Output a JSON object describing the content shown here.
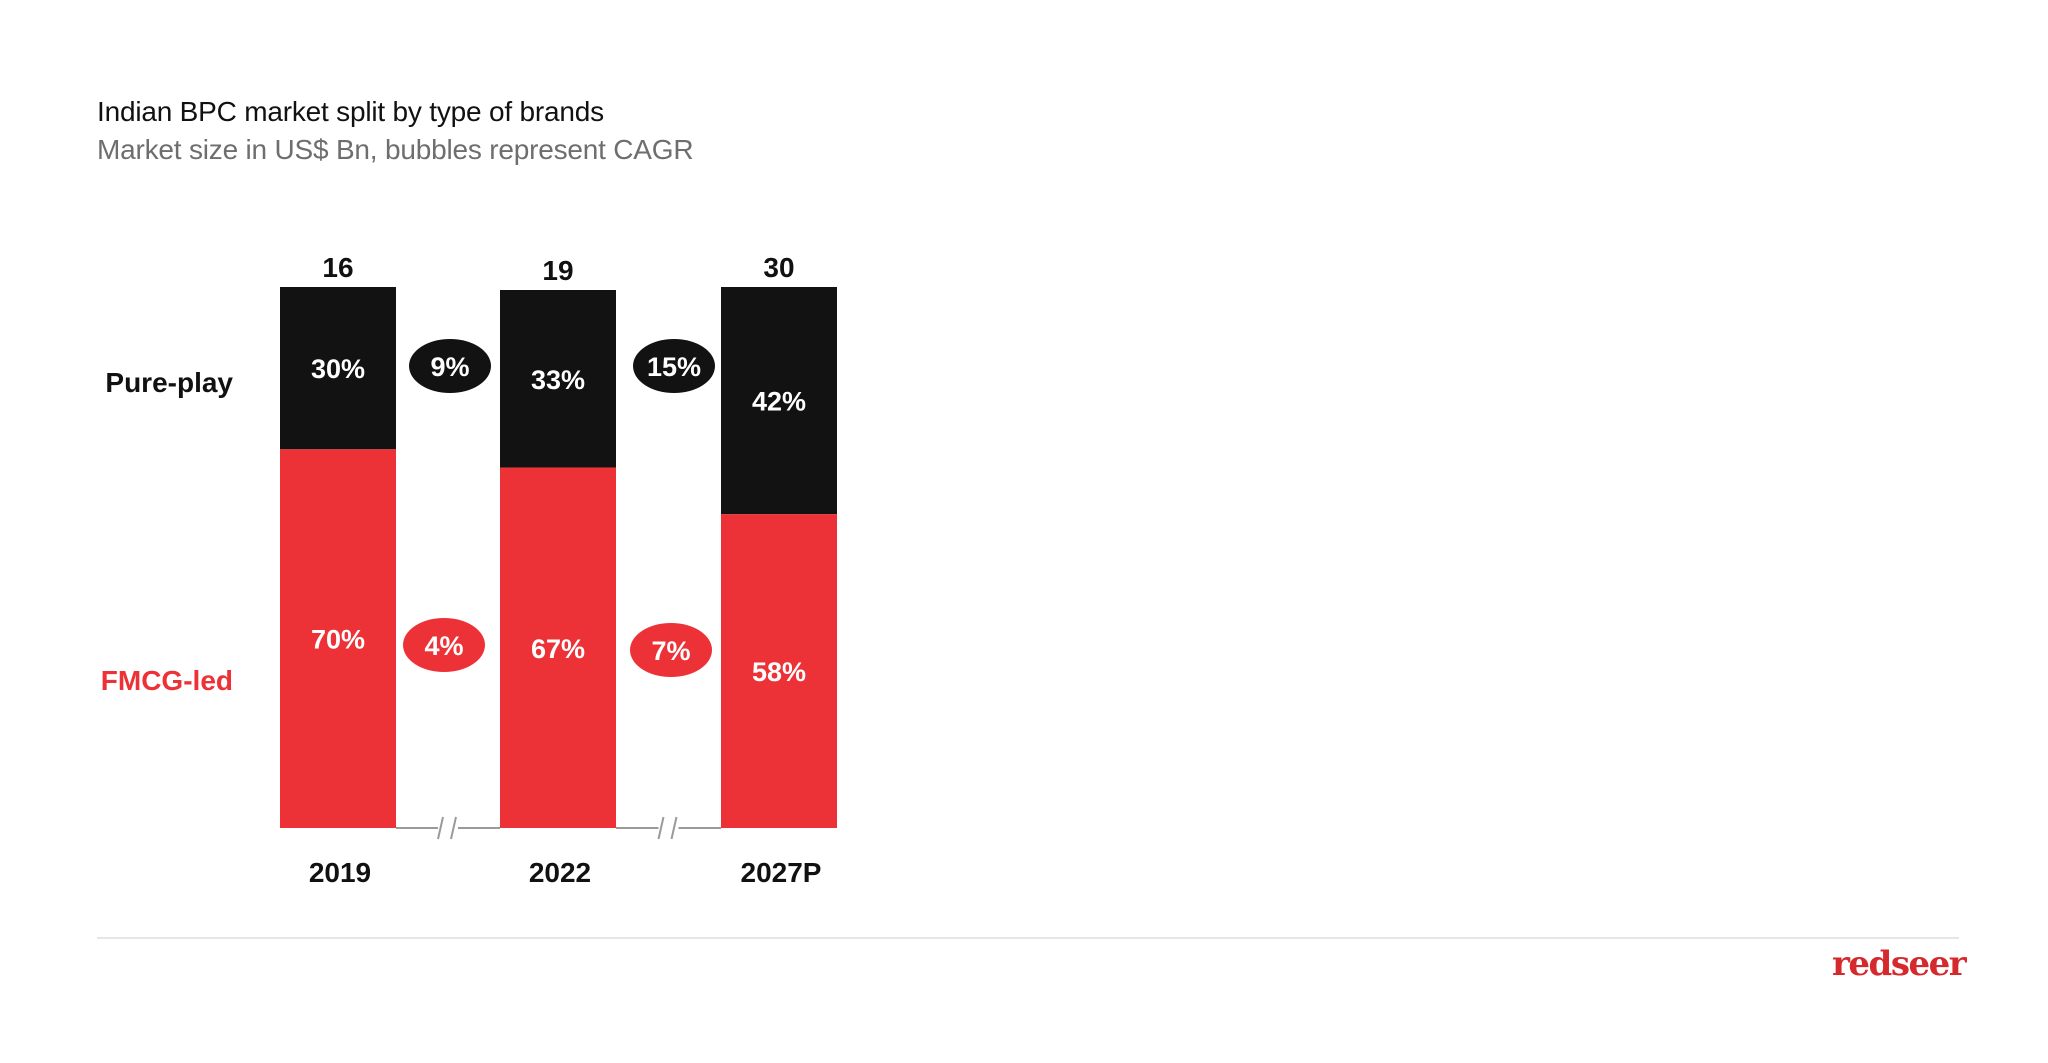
{
  "header": {
    "title": "Indian BPC market split by type of brands",
    "subtitle": "Market size in US$ Bn, bubbles represent CAGR"
  },
  "brand": {
    "logo_text": "redseer",
    "logo_color": "#d42a2d"
  },
  "colors": {
    "pure_play": "#121212",
    "fmcg": "#ed3237",
    "axis_break": "#9a9a9a",
    "divider": "#e6e6e6"
  },
  "chart_data": {
    "type": "bar",
    "stacked": true,
    "normalized": true,
    "title": "Indian BPC market split by type of brands",
    "subtitle": "Market size in US$ Bn, bubbles represent CAGR",
    "categories": [
      "2019",
      "2022",
      "2027P"
    ],
    "totals": [
      "16",
      "19",
      "30"
    ],
    "series": [
      {
        "name": "FMCG-led",
        "color": "#ed3237",
        "values": [
          70,
          67,
          58
        ],
        "labels": [
          "70%",
          "67%",
          "58%"
        ],
        "cagr": [
          "4%",
          "7%"
        ]
      },
      {
        "name": "Pure-play",
        "color": "#121212",
        "values": [
          30,
          33,
          42
        ],
        "labels": [
          "30%",
          "33%",
          "42%"
        ],
        "cagr": [
          "9%",
          "15%"
        ]
      }
    ],
    "ylim": [
      0,
      100
    ],
    "xlabel": "",
    "ylabel": "",
    "grid": false,
    "legend": "left"
  }
}
